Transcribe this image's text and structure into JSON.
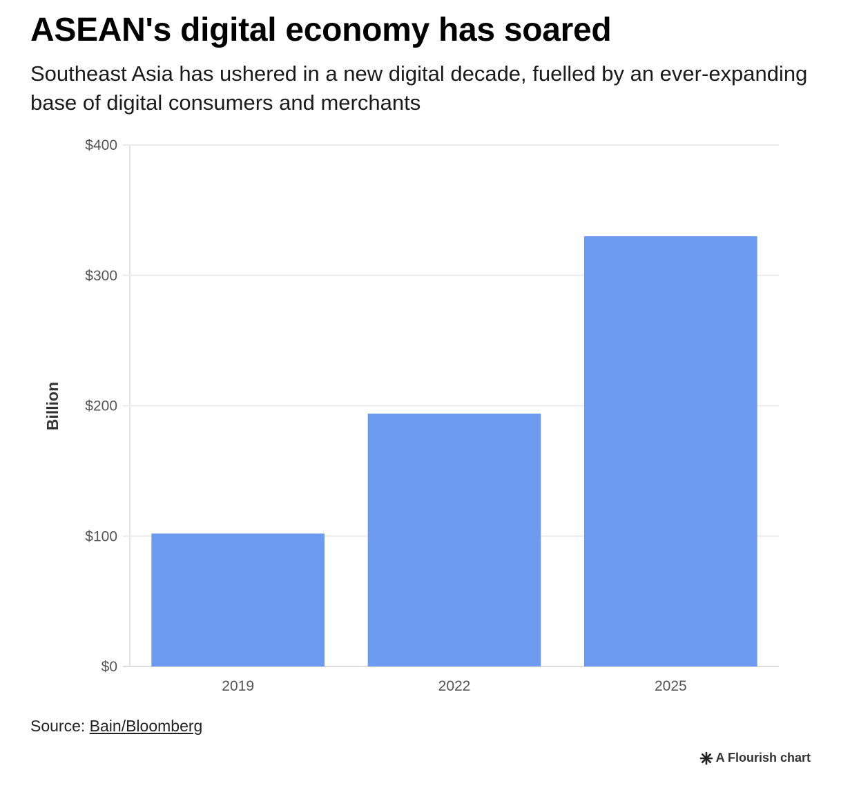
{
  "title": "ASEAN's digital economy has soared",
  "subtitle": "Southeast Asia has ushered in a new digital decade, fuelled by an ever-expanding base of digital consumers and merchants",
  "chart_data": {
    "type": "bar",
    "categories": [
      "2019",
      "2022",
      "2025"
    ],
    "values": [
      102,
      194,
      330
    ],
    "ylabel": "Billion",
    "ylim": [
      0,
      400
    ],
    "yticks": [
      0,
      100,
      200,
      300,
      400
    ],
    "ytick_labels": [
      "$0",
      "$100",
      "$200",
      "$300",
      "$400"
    ],
    "grid": true,
    "bar_color": "#6b9aef"
  },
  "source": {
    "prefix": "Source: ",
    "link_text": "Bain/Bloomberg"
  },
  "credit": {
    "text": "A Flourish chart",
    "icon": "flourish-asterisk-icon"
  }
}
